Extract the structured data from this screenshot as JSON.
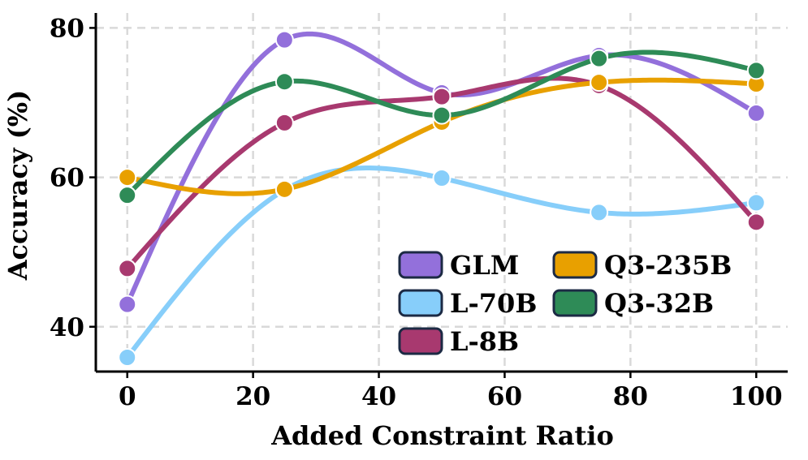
{
  "chart_data": {
    "type": "line",
    "title": "",
    "xlabel": "Added Constraint Ratio",
    "ylabel": "Accuracy (%)",
    "x": [
      0,
      25,
      50,
      75,
      100
    ],
    "xlim": [
      -5,
      105
    ],
    "ylim": [
      34,
      82
    ],
    "xticks": [
      0,
      20,
      40,
      60,
      80,
      100
    ],
    "yticks": [
      40,
      60,
      80
    ],
    "grid": true,
    "smooth": true,
    "legend_position": "bottom-right",
    "series": [
      {
        "name": "GLM",
        "color": "#9370DB",
        "values": [
          43.0,
          78.4,
          71.3,
          76.3,
          68.6
        ]
      },
      {
        "name": "L-70B",
        "color": "#87CEFA",
        "values": [
          35.9,
          58.3,
          59.9,
          55.3,
          56.6
        ]
      },
      {
        "name": "L-8B",
        "color": "#A8396F",
        "values": [
          47.8,
          67.3,
          70.8,
          72.3,
          54.0
        ]
      },
      {
        "name": "Q3-235B",
        "color": "#E8A000",
        "values": [
          60.0,
          58.4,
          67.4,
          72.7,
          72.5
        ]
      },
      {
        "name": "Q3-32B",
        "color": "#2E8B57",
        "values": [
          57.6,
          72.8,
          68.3,
          75.9,
          74.3
        ]
      }
    ]
  }
}
